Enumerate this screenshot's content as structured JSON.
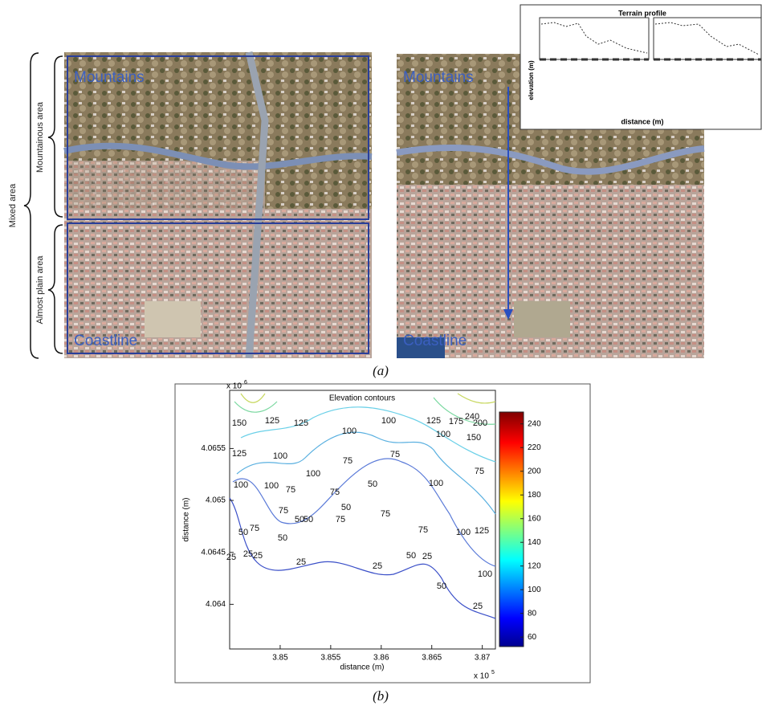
{
  "panel_a": {
    "label": "(a)",
    "brackets": {
      "outer": "Mixed area",
      "upper": "Mountainous area",
      "lower": "Almost plain area"
    },
    "left_image": {
      "top_label": "Mountains",
      "bottom_label": "Coastline"
    },
    "right_image": {
      "top_label": "Mountains",
      "bottom_label": "Coastline"
    },
    "inset": {
      "title": "Terrain profile",
      "xlabel": "distance (m)",
      "ylabel": "elevation (m)"
    }
  },
  "panel_b": {
    "label": "(b)",
    "title": "Elevation contours",
    "xlabel": "distance (m)",
    "ylabel": "distance (m)",
    "x_multiplier": {
      "base": "x 10",
      "exponent": "5"
    },
    "y_multiplier": {
      "base": "x 10",
      "exponent": "6"
    },
    "xlim": [
      3.845,
      3.8713
    ],
    "xticks": [
      3.85,
      3.855,
      3.86,
      3.865,
      3.87
    ],
    "ylim": [
      4.06357,
      4.06606
    ],
    "yticks": [
      4.064,
      4.0645,
      4.065,
      4.0655
    ],
    "colorbar": {
      "lim": [
        52,
        250
      ],
      "ticks": [
        60,
        80,
        100,
        120,
        140,
        160,
        180,
        200,
        220,
        240
      ]
    },
    "contour_labels": [
      150,
      125,
      125,
      100,
      100,
      125,
      175,
      240,
      200,
      100,
      150,
      125,
      100,
      100,
      75,
      75,
      100,
      100,
      75,
      75,
      50,
      75,
      100,
      75,
      75,
      50,
      50,
      75,
      50,
      25,
      50,
      75,
      125,
      100,
      25,
      25,
      25,
      50,
      25,
      50,
      75,
      100,
      25,
      25,
      50
    ]
  }
}
